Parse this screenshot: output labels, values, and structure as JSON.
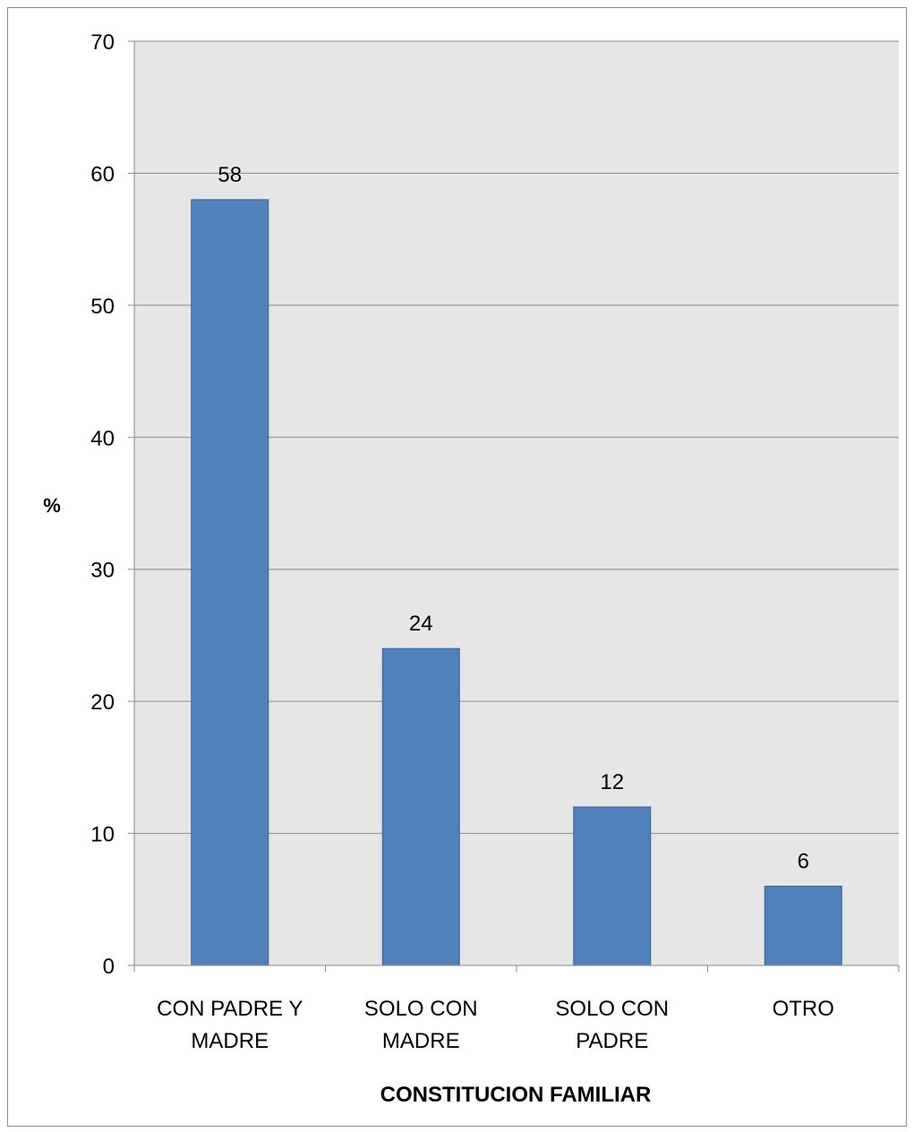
{
  "chart_data": {
    "type": "bar",
    "title": "",
    "xlabel": "CONSTITUCION FAMILIAR",
    "ylabel": "%",
    "categories": [
      [
        "CON PADRE Y",
        "MADRE"
      ],
      [
        "SOLO CON",
        "MADRE"
      ],
      [
        "SOLO CON",
        "PADRE"
      ],
      [
        "OTRO"
      ]
    ],
    "values": [
      58,
      24,
      12,
      6
    ],
    "data_labels": [
      "58",
      "24",
      "12",
      "6"
    ],
    "ylim": [
      0,
      70
    ],
    "yticks": [
      0,
      10,
      20,
      30,
      40,
      50,
      60,
      70
    ],
    "grid": true,
    "legend": "none",
    "colors": {
      "bar": "#4f81bd",
      "bar_border": "#3a6293",
      "plot_background": "#e6e6e6",
      "gridline": "#8a8a8a",
      "axis": "#8a8a8a"
    }
  }
}
